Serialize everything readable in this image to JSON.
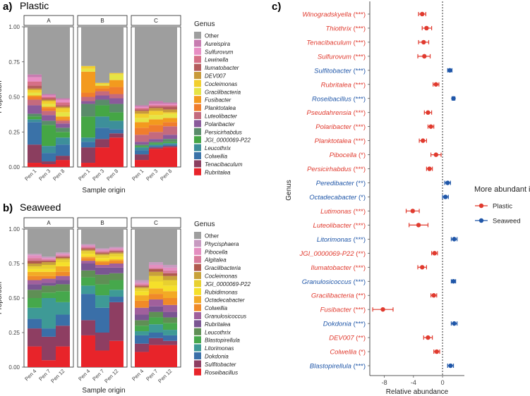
{
  "panels": {
    "a_label": "a)",
    "a_title": "Plastic",
    "b_label": "b)",
    "b_title": "Seaweed",
    "c_label": "c)"
  },
  "legend_title": "Genus",
  "colors": {
    "Other": "#9e9e9e",
    "Aureispira": "#c77cb0",
    "Sulfurovum": "#e88ec4",
    "Lewinella": "#d66f86",
    "Ilumatobacter": "#b45c5c",
    "DEV007": "#c89a3a",
    "Cocleimonas": "#f2cf2e",
    "Gracilibacteria": "#e6e445",
    "Fusibacter": "#f39a1e",
    "Planktotalea": "#f07d2d",
    "Luteolibacter": "#c46a7e",
    "Polaribacter": "#8a5a9b",
    "Persicirhabdus": "#5a8c6a",
    "JGI_0000069-P22": "#45a645",
    "Leucothrix": "#3d8f9a",
    "Colwellia": "#3a72a8",
    "Tenacibaculum": "#8b3e5f",
    "Rubritalea": "#e8242a",
    "Phycisphaera": "#c79ac0",
    "Pibocella": "#e48ec0",
    "Algitalea": "#d87a9a",
    "JGI_0000069-P22b": "#e8d030",
    "Rubidimonas": "#f5e02a",
    "Octadecabacter": "#f3aa25",
    "Colwellia_b": "#f08a28",
    "Granulosicoccus": "#a0609c",
    "Rubritalea_b": "#7a5592",
    "Leucothrix_b": "#5f8f55",
    "Blastopirellula": "#46a84c",
    "Litorimonas": "#3e9a96",
    "Dokdonia": "#3a6fa8",
    "Sulfitobacter": "#8e3e62",
    "Roseibacillus": "#e8242a",
    "Gracilibacteria_b": "#b05a4e",
    "Cocleimonas_b": "#c8a23a",
    "plastic_pt": "#e03a2e",
    "seaweed_pt": "#1f56a8"
  },
  "chart_data": [
    {
      "id": "a",
      "type": "bar",
      "title": "Plastic",
      "xlabel": "Sample origin",
      "ylabel": "Proportion",
      "ylim": [
        0,
        1
      ],
      "yticks": [
        "0.00",
        "0.25",
        "0.50",
        "0.75",
        "1.00"
      ],
      "facets": [
        "A",
        "B",
        "C"
      ],
      "categories": [
        "Pen 1",
        "Pen 3",
        "Pen 8"
      ],
      "legend": [
        "Other",
        "Aureispira",
        "Sulfurovum",
        "Lewinella",
        "Ilumatobacter",
        "DEV007",
        "Cocleimonas",
        "Gracilibacteria",
        "Fusibacter",
        "Planktotalea",
        "Luteolibacter",
        "Polaribacter",
        "Persicirhabdus",
        "JGI_0000069-P22",
        "Leucothrix",
        "Colwellia",
        "Tenacibaculum",
        "Rubritalea"
      ],
      "stack_order": [
        "Rubritalea",
        "Tenacibaculum",
        "Colwellia",
        "Leucothrix",
        "JGI_0000069-P22",
        "Persicirhabdus",
        "Polaribacter",
        "Luteolibacter",
        "Planktotalea",
        "Fusibacter",
        "Gracilibacteria",
        "Cocleimonas",
        "DEV007",
        "Ilumatobacter",
        "Lewinella",
        "Sulfurovum",
        "Aureispira"
      ],
      "bars": [
        {
          "facet": "A",
          "cat": "Pen 1",
          "v": [
            0.03,
            0.13,
            0.16,
            0.02,
            0.02,
            0.02,
            0.06,
            0.04,
            0.02,
            0.01,
            0.02,
            0.02,
            0.01,
            0.02,
            0.03,
            0.03,
            0.02
          ]
        },
        {
          "facet": "A",
          "cat": "Pen 3",
          "v": [
            0.02,
            0.02,
            0.06,
            0.05,
            0.15,
            0.03,
            0.04,
            0.03,
            0.02,
            0.01,
            0.02,
            0.02,
            0.01,
            0.01,
            0.01,
            0.01,
            0.01
          ]
        },
        {
          "facet": "A",
          "cat": "Pen 8",
          "v": [
            0.05,
            0.03,
            0.08,
            0.05,
            0.04,
            0.03,
            0.03,
            0.02,
            0.01,
            0.02,
            0.03,
            0.03,
            0.01,
            0.01,
            0.02,
            0.02,
            0.01
          ]
        },
        {
          "facet": "B",
          "cat": "Pen 1",
          "v": [
            0.03,
            0.11,
            0.04,
            0.03,
            0.15,
            0.09,
            0.02,
            0.03,
            0.03,
            0.15,
            0.02,
            0.02,
            0.0,
            0.0,
            0.0,
            0.0,
            0.0
          ]
        },
        {
          "facet": "B",
          "cat": "Pen 3",
          "v": [
            0.14,
            0.06,
            0.08,
            0.08,
            0.08,
            0.04,
            0.03,
            0.03,
            0.02,
            0.02,
            0.01,
            0.01,
            0.0,
            0.0,
            0.0,
            0.0,
            0.0
          ]
        },
        {
          "facet": "B",
          "cat": "Pen 8",
          "v": [
            0.21,
            0.03,
            0.03,
            0.06,
            0.06,
            0.06,
            0.04,
            0.03,
            0.05,
            0.05,
            0.04,
            0.01,
            0.0,
            0.0,
            0.0,
            0.0,
            0.0
          ]
        },
        {
          "facet": "C",
          "cat": "Pen 1",
          "v": [
            0.05,
            0.04,
            0.03,
            0.02,
            0.01,
            0.01,
            0.02,
            0.05,
            0.05,
            0.04,
            0.03,
            0.03,
            0.02,
            0.01,
            0.01,
            0.01,
            0.01
          ]
        },
        {
          "facet": "C",
          "cat": "Pen 3",
          "v": [
            0.13,
            0.01,
            0.01,
            0.01,
            0.01,
            0.01,
            0.02,
            0.05,
            0.05,
            0.04,
            0.03,
            0.03,
            0.02,
            0.01,
            0.01,
            0.01,
            0.02
          ]
        },
        {
          "facet": "C",
          "cat": "Pen 8",
          "v": [
            0.14,
            0.01,
            0.01,
            0.01,
            0.01,
            0.02,
            0.03,
            0.06,
            0.03,
            0.03,
            0.03,
            0.01,
            0.02,
            0.02,
            0.01,
            0.01,
            0.01
          ]
        }
      ]
    },
    {
      "id": "b",
      "type": "bar",
      "title": "Seaweed",
      "xlabel": "Sample origin",
      "ylabel": "Proportion",
      "ylim": [
        0,
        1
      ],
      "yticks": [
        "0.00",
        "0.25",
        "0.50",
        "0.75",
        "1.00"
      ],
      "facets": [
        "A",
        "B",
        "C"
      ],
      "categories": [
        "Pen 4",
        "Pen 7",
        "Pen 12"
      ],
      "legend": [
        "Other",
        "Phycisphaera",
        "Pibocella",
        "Algitalea",
        "Gracilibacteria",
        "Cocleimonas",
        "JGI_0000069-P22",
        "Rubidimonas",
        "Octadecabacter",
        "Colwellia",
        "Granulosicoccus",
        "Rubritalea",
        "Leucothrix",
        "Blastopirellula",
        "Litorimonas",
        "Dokdonia",
        "Sulfitobacter",
        "Roseibacillus"
      ],
      "legend_color_keys": [
        "Other",
        "Phycisphaera",
        "Pibocella",
        "Algitalea",
        "Gracilibacteria_b",
        "Cocleimonas_b",
        "JGI_0000069-P22b",
        "Rubidimonas",
        "Octadecabacter",
        "Colwellia_b",
        "Granulosicoccus",
        "Rubritalea_b",
        "Leucothrix_b",
        "Blastopirellula",
        "Litorimonas",
        "Dokdonia",
        "Sulfitobacter",
        "Roseibacillus"
      ],
      "stack_order": [
        "Roseibacillus",
        "Sulfitobacter",
        "Dokdonia",
        "Litorimonas",
        "Blastopirellula",
        "Leucothrix_b",
        "Rubritalea_b",
        "Granulosicoccus",
        "Colwellia_b",
        "Octadecabacter",
        "Rubidimonas",
        "JGI_0000069-P22b",
        "Cocleimonas_b",
        "Gracilibacteria_b",
        "Algitalea",
        "Pibocella",
        "Phycisphaera"
      ],
      "bars": [
        {
          "facet": "A",
          "cat": "Pen 4",
          "v": [
            0.15,
            0.13,
            0.07,
            0.08,
            0.07,
            0.06,
            0.04,
            0.03,
            0.03,
            0.03,
            0.02,
            0.02,
            0.02,
            0.02,
            0.02,
            0.02,
            0.01
          ]
        },
        {
          "facet": "A",
          "cat": "Pen 7",
          "v": [
            0.05,
            0.17,
            0.06,
            0.22,
            0.04,
            0.05,
            0.02,
            0.03,
            0.02,
            0.03,
            0.02,
            0.03,
            0.02,
            0.01,
            0.01,
            0.01,
            0.01
          ]
        },
        {
          "facet": "A",
          "cat": "Pen 12",
          "v": [
            0.15,
            0.15,
            0.08,
            0.09,
            0.08,
            0.05,
            0.03,
            0.03,
            0.03,
            0.04,
            0.03,
            0.02,
            0.01,
            0.01,
            0.01,
            0.01,
            0.01
          ]
        },
        {
          "facet": "B",
          "cat": "Pen 4",
          "v": [
            0.23,
            0.11,
            0.19,
            0.06,
            0.06,
            0.05,
            0.05,
            0.02,
            0.02,
            0.01,
            0.02,
            0.02,
            0.01,
            0.01,
            0.01,
            0.01,
            0.01
          ]
        },
        {
          "facet": "B",
          "cat": "Pen 7",
          "v": [
            0.12,
            0.13,
            0.18,
            0.09,
            0.08,
            0.07,
            0.05,
            0.02,
            0.02,
            0.01,
            0.02,
            0.02,
            0.01,
            0.01,
            0.01,
            0.01,
            0.01
          ]
        },
        {
          "facet": "B",
          "cat": "Pen 12",
          "v": [
            0.19,
            0.28,
            0.04,
            0.05,
            0.07,
            0.05,
            0.04,
            0.03,
            0.02,
            0.01,
            0.02,
            0.02,
            0.01,
            0.01,
            0.01,
            0.01,
            0.01
          ]
        },
        {
          "facet": "C",
          "cat": "Pen 4",
          "v": [
            0.11,
            0.06,
            0.06,
            0.03,
            0.04,
            0.04,
            0.04,
            0.05,
            0.05,
            0.04,
            0.03,
            0.02,
            0.01,
            0.01,
            0.01,
            0.01,
            0.02
          ]
        },
        {
          "facet": "C",
          "cat": "Pen 7",
          "v": [
            0.16,
            0.05,
            0.04,
            0.06,
            0.05,
            0.04,
            0.04,
            0.05,
            0.04,
            0.04,
            0.05,
            0.04,
            0.03,
            0.02,
            0.01,
            0.02,
            0.02
          ]
        },
        {
          "facet": "C",
          "cat": "Pen 12",
          "v": [
            0.16,
            0.03,
            0.04,
            0.04,
            0.05,
            0.04,
            0.04,
            0.05,
            0.05,
            0.05,
            0.04,
            0.04,
            0.03,
            0.02,
            0.02,
            0.02,
            0.02
          ]
        }
      ]
    },
    {
      "id": "c",
      "type": "scatter",
      "title": "",
      "xlabel": "Relative abundance",
      "ylabel": "Genus",
      "xlim": [
        -10,
        3
      ],
      "xticks": [
        -8,
        -4,
        0
      ],
      "legend_title": "More abundant in",
      "legend": [
        "Plastic",
        "Seaweed"
      ],
      "points": [
        {
          "genus": "Winogradskyella",
          "sig": "(***)",
          "group": "Plastic",
          "est": -2.8,
          "lo": -3.3,
          "hi": -2.3
        },
        {
          "genus": "Thiothrix",
          "sig": "(***)",
          "group": "Plastic",
          "est": -2.2,
          "lo": -2.8,
          "hi": -1.5
        },
        {
          "genus": "Tenacibaculum",
          "sig": "(***)",
          "group": "Plastic",
          "est": -2.6,
          "lo": -3.3,
          "hi": -1.9
        },
        {
          "genus": "Sulfurovum",
          "sig": "(***)",
          "group": "Plastic",
          "est": -2.5,
          "lo": -3.4,
          "hi": -1.7
        },
        {
          "genus": "Sulfitobacter",
          "sig": "(***)",
          "group": "Seaweed",
          "est": 1.0,
          "lo": 0.7,
          "hi": 1.3
        },
        {
          "genus": "Rubritalea",
          "sig": "(***)",
          "group": "Plastic",
          "est": -0.9,
          "lo": -1.3,
          "hi": -0.5
        },
        {
          "genus": "Roseibacillus",
          "sig": "(***)",
          "group": "Seaweed",
          "est": 1.5,
          "lo": 1.3,
          "hi": 1.7
        },
        {
          "genus": "Pseudahrensia",
          "sig": "(***)",
          "group": "Plastic",
          "est": -2.0,
          "lo": -2.5,
          "hi": -1.5
        },
        {
          "genus": "Polaribacter",
          "sig": "(***)",
          "group": "Plastic",
          "est": -1.6,
          "lo": -2.0,
          "hi": -1.2
        },
        {
          "genus": "Planktotalea",
          "sig": "(***)",
          "group": "Plastic",
          "est": -2.7,
          "lo": -3.2,
          "hi": -2.2
        },
        {
          "genus": "Pibocella",
          "sig": "(*)",
          "group": "Plastic",
          "est": -0.9,
          "lo": -1.6,
          "hi": -0.2
        },
        {
          "genus": "Persicirhabdus",
          "sig": "(***)",
          "group": "Plastic",
          "est": -1.8,
          "lo": -2.2,
          "hi": -1.4
        },
        {
          "genus": "Peredibacter",
          "sig": "(**)",
          "group": "Seaweed",
          "est": 0.7,
          "lo": 0.3,
          "hi": 1.1
        },
        {
          "genus": "Octadecabacter",
          "sig": "(*)",
          "group": "Seaweed",
          "est": 0.4,
          "lo": 0.0,
          "hi": 0.8
        },
        {
          "genus": "Lutimonas",
          "sig": "(***)",
          "group": "Plastic",
          "est": -4.1,
          "lo": -5.0,
          "hi": -3.2
        },
        {
          "genus": "Luteolibacter",
          "sig": "(***)",
          "group": "Plastic",
          "est": -3.3,
          "lo": -4.6,
          "hi": -2.0
        },
        {
          "genus": "Litorimonas",
          "sig": "(***)",
          "group": "Seaweed",
          "est": 1.6,
          "lo": 1.2,
          "hi": 2.0
        },
        {
          "genus": "JGI_0000069-P22",
          "sig": "(**)",
          "group": "Plastic",
          "est": -1.1,
          "lo": -1.5,
          "hi": -0.7
        },
        {
          "genus": "Ilumatobacter",
          "sig": "(***)",
          "group": "Plastic",
          "est": -2.8,
          "lo": -3.4,
          "hi": -2.2
        },
        {
          "genus": "Granulosicoccus",
          "sig": "(***)",
          "group": "Seaweed",
          "est": 1.5,
          "lo": 1.2,
          "hi": 1.8
        },
        {
          "genus": "Gracilibacteria",
          "sig": "(**)",
          "group": "Plastic",
          "est": -1.2,
          "lo": -1.6,
          "hi": -0.8
        },
        {
          "genus": "Fusibacter",
          "sig": "(***)",
          "group": "Plastic",
          "est": -8.2,
          "lo": -9.6,
          "hi": -6.8
        },
        {
          "genus": "Dokdonia",
          "sig": "(***)",
          "group": "Seaweed",
          "est": 1.6,
          "lo": 1.2,
          "hi": 2.0
        },
        {
          "genus": "DEV007",
          "sig": "(**)",
          "group": "Plastic",
          "est": -2.0,
          "lo": -2.6,
          "hi": -1.4
        },
        {
          "genus": "Colwellia",
          "sig": "(*)",
          "group": "Plastic",
          "est": -0.8,
          "lo": -1.2,
          "hi": -0.4
        },
        {
          "genus": "Blastopirellula",
          "sig": "(***)",
          "group": "Seaweed",
          "est": 1.1,
          "lo": 0.7,
          "hi": 1.5
        }
      ]
    }
  ]
}
